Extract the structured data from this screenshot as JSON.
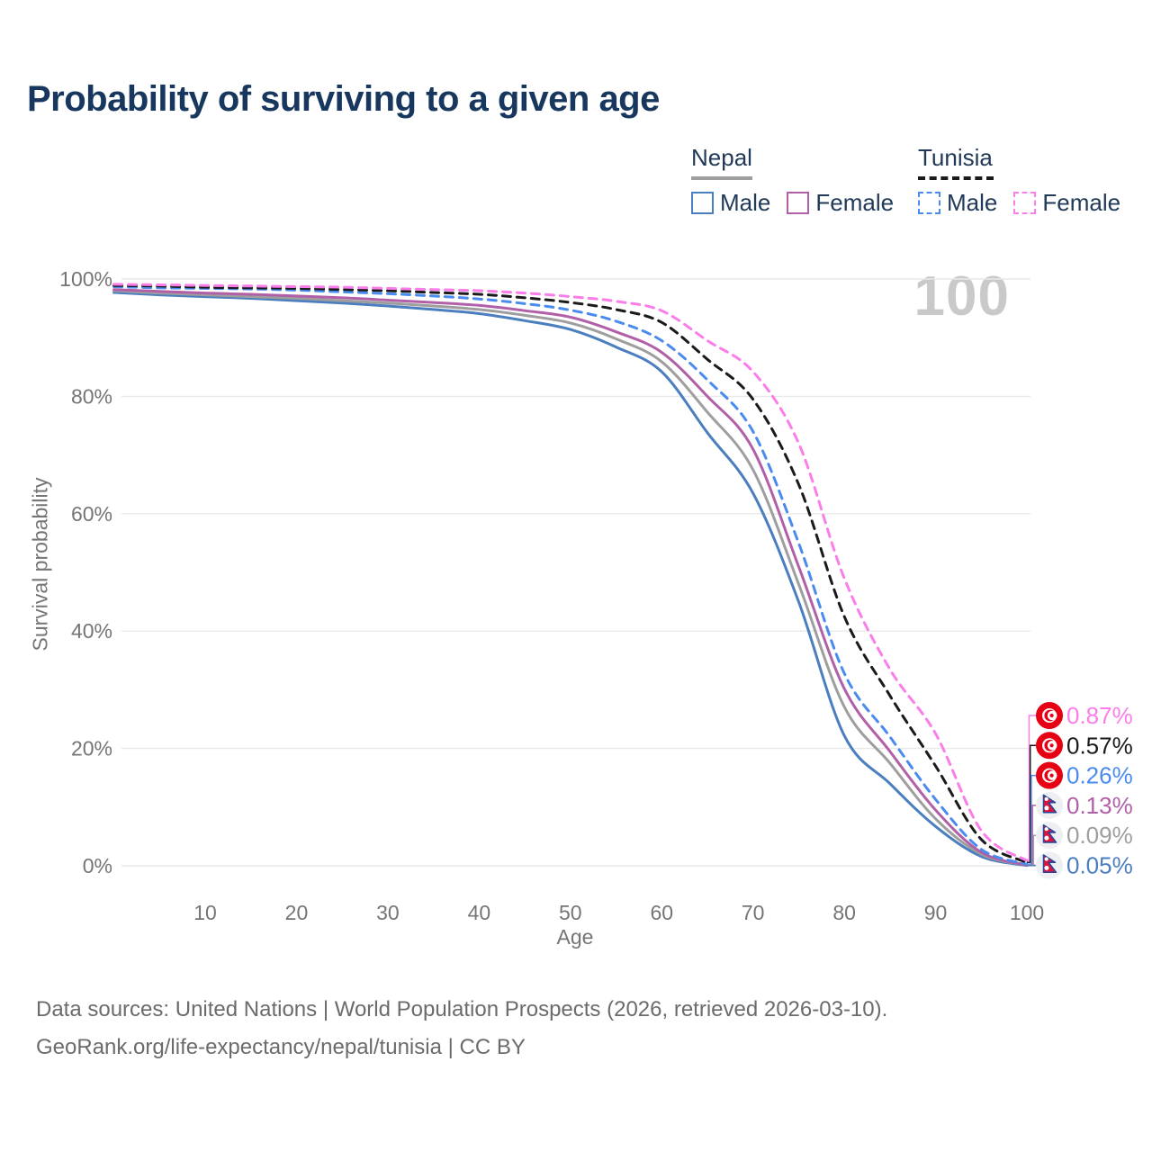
{
  "title": "Probability of surviving to a given age",
  "watermark": "100",
  "legend": {
    "groups": [
      {
        "country": "Nepal",
        "line_style": "solid",
        "underline_color": "#9e9e9e",
        "underline_width": 68,
        "items": [
          {
            "label": "Male",
            "color": "#4b7ebf",
            "dashed": false
          },
          {
            "label": "Female",
            "color": "#b160a8",
            "dashed": false
          }
        ]
      },
      {
        "country": "Tunisia",
        "line_style": "dashed",
        "underline_color": "#1a1a1a",
        "underline_width": 84,
        "items": [
          {
            "label": "Male",
            "color": "#4a8bef",
            "dashed": true
          },
          {
            "label": "Female",
            "color": "#fa7de9",
            "dashed": true
          }
        ]
      }
    ]
  },
  "chart_data": {
    "type": "line",
    "title": "Probability of surviving to a given age",
    "xlabel": "Age",
    "ylabel": "Survival probability",
    "xlim": [
      0,
      100
    ],
    "ylim": [
      0,
      100
    ],
    "grid": "horizontal",
    "xticks": [
      10,
      20,
      30,
      40,
      50,
      60,
      70,
      80,
      90,
      100
    ],
    "ytick_values": [
      0,
      20,
      40,
      60,
      80,
      100
    ],
    "ytick_labels": [
      "0%",
      "20%",
      "40%",
      "60%",
      "80%",
      "100%"
    ],
    "x": [
      0,
      5,
      10,
      15,
      20,
      25,
      30,
      35,
      40,
      45,
      50,
      55,
      60,
      65,
      70,
      75,
      80,
      85,
      90,
      95,
      100
    ],
    "series": [
      {
        "name": "Tunisia Female",
        "country": "Tunisia",
        "sex": "Female",
        "color": "#fa7de9",
        "dash": true,
        "end_label": "0.87%",
        "values": [
          99.1,
          99.0,
          98.9,
          98.8,
          98.7,
          98.6,
          98.4,
          98.2,
          98.0,
          97.6,
          97.0,
          96.2,
          94.6,
          89.5,
          84.2,
          72.0,
          49.0,
          33.5,
          22.5,
          6.0,
          0.87
        ]
      },
      {
        "name": "Tunisia (both sexes)",
        "country": "Tunisia",
        "sex": "Both",
        "color": "#1a1a1a",
        "dash": true,
        "end_label": "0.57%",
        "values": [
          98.9,
          98.8,
          98.6,
          98.5,
          98.4,
          98.2,
          98.0,
          97.7,
          97.4,
          96.8,
          96.0,
          94.8,
          92.6,
          86.3,
          79.5,
          65.0,
          42.5,
          29.0,
          17.0,
          4.5,
          0.57
        ]
      },
      {
        "name": "Tunisia Male",
        "country": "Tunisia",
        "sex": "Male",
        "color": "#4a8bef",
        "dash": true,
        "end_label": "0.26%",
        "values": [
          98.7,
          98.5,
          98.4,
          98.3,
          98.1,
          97.8,
          97.5,
          97.1,
          96.6,
          95.8,
          94.7,
          92.8,
          89.5,
          82.8,
          74.0,
          55.0,
          32.8,
          22.0,
          11.3,
          2.8,
          0.26
        ]
      },
      {
        "name": "Nepal Female",
        "country": "Nepal",
        "sex": "Female",
        "color": "#b160a8",
        "dash": false,
        "end_label": "0.13%",
        "values": [
          98.2,
          97.9,
          97.6,
          97.4,
          97.1,
          96.8,
          96.4,
          96.0,
          95.5,
          94.6,
          93.5,
          91.0,
          87.5,
          80.0,
          71.0,
          51.0,
          30.2,
          19.5,
          9.5,
          2.3,
          0.13
        ]
      },
      {
        "name": "Nepal (both sexes)",
        "country": "Nepal",
        "sex": "Both",
        "color": "#9e9e9e",
        "dash": false,
        "end_label": "0.09%",
        "values": [
          98.0,
          97.6,
          97.3,
          97.0,
          96.7,
          96.3,
          95.9,
          95.4,
          94.8,
          93.8,
          92.5,
          89.8,
          85.9,
          77.3,
          67.5,
          48.0,
          27.1,
          17.5,
          8.0,
          2.0,
          0.09
        ]
      },
      {
        "name": "Nepal Male",
        "country": "Nepal",
        "sex": "Male",
        "color": "#4b7ebf",
        "dash": false,
        "end_label": "0.05%",
        "values": [
          97.7,
          97.3,
          97.0,
          96.7,
          96.3,
          95.9,
          95.4,
          94.8,
          94.1,
          92.9,
          91.4,
          88.4,
          84.2,
          73.8,
          63.5,
          45.0,
          22.2,
          14.0,
          6.7,
          1.6,
          0.05
        ]
      }
    ],
    "legend_position": "top-right",
    "flag_colors": {
      "tunisia_red": "#E70013",
      "nepal_crimson": "#DC143C",
      "nepal_blue": "#23459c",
      "nepal_bg": "#edeff2"
    }
  },
  "footer": {
    "line1": "Data sources: United Nations | World Population Prospects (2026, retrieved 2026-03-10).",
    "line2": "GeoRank.org/life-expectancy/nepal/tunisia | CC BY"
  }
}
